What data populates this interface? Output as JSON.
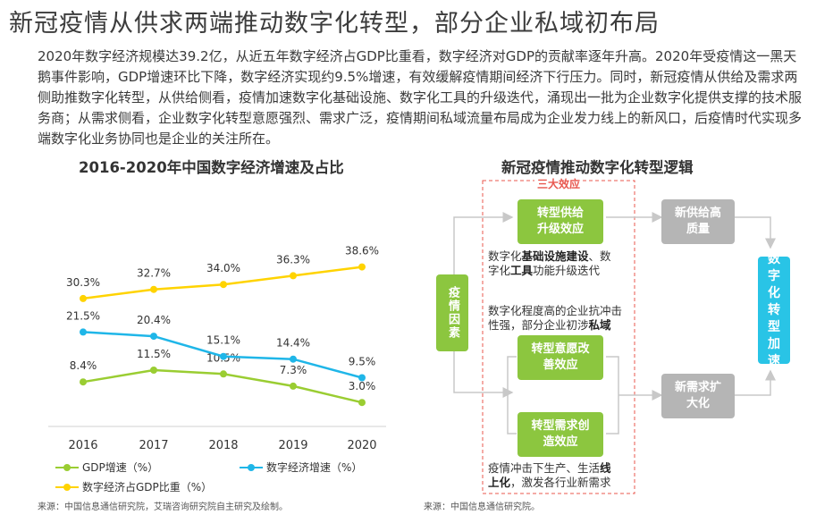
{
  "page_title": "新冠疫情从供求两端推动数字化转型，部分企业私域初布局",
  "intro": "2020年数字经济规模达39.2亿，从近五年数字经济占GDP比重看，数字经济对GDP的贡献率逐年升高。2020年受疫情这一黑天鹅事件影响，GDP增速环比下降，数字经济实现约9.5%增速，有效缓解疫情期间经济下行压力。同时，新冠疫情从供给及需求两侧助推数字化转型，从供给侧看，疫情加速数字化基础设施、数字化工具的升级迭代，涌现出一批为企业数字化提供支撑的技术服务商；从需求侧看，企业数字化转型意愿强烈、需求广泛，疫情期间私域流量布局成为企业发力线上的新风口，后疫情时代实现多端数字化业务协同也是企业的关注所在。",
  "chart_data": {
    "type": "line",
    "title": "2016-2020年中国数字经济增速及占比",
    "categories": [
      "2016",
      "2017",
      "2018",
      "2019",
      "2020"
    ],
    "series": [
      {
        "name": "GDP增速（%）",
        "values": [
          8.4,
          11.5,
          10.5,
          7.3,
          3.0
        ],
        "labels": [
          "8.4%",
          "11.5%",
          "10.5%",
          "7.3%",
          "3.0%"
        ],
        "color": "#9acd32"
      },
      {
        "name": "数字经济增速（%）",
        "values": [
          21.5,
          20.4,
          15.1,
          14.4,
          9.5
        ],
        "labels": [
          "21.5%",
          "20.4%",
          "15.1%",
          "14.4%",
          "9.5%"
        ],
        "color": "#1fb6e8"
      },
      {
        "name": "数字经济占GDP比重（%）",
        "values": [
          30.3,
          32.7,
          34.0,
          36.3,
          38.6
        ],
        "labels": [
          "30.3%",
          "32.7%",
          "34.0%",
          "36.3%",
          "38.6%"
        ],
        "color": "#ffd300"
      }
    ],
    "xlabel": "",
    "ylabel": "",
    "grid": false,
    "legend_position": "bottom"
  },
  "chart_source": "来源：中国信息通信研究院，艾瑞咨询研究院自主研究及绘制。",
  "logic": {
    "title": "新冠疫情推动数字化转型逻辑",
    "effects_label": "三大效应",
    "cause": "疫情因素",
    "box_supply": "转型供给升级效应",
    "box_willing": "转型意愿改善效应",
    "box_demand": "转型需求创造效应",
    "new_supply": "新供给高质量",
    "new_demand": "新需求扩大化",
    "result": "数字化转型加速",
    "desc1_a": "数字化",
    "desc1_b": "基础设施建设",
    "desc1_c": "、数",
    "desc1_d": "字化",
    "desc1_e": "工具",
    "desc1_f": "功能升级迭代",
    "desc2_a": "数字化程度高的企业抗冲击",
    "desc2_b": "性强，部分企业初涉",
    "desc2_c": "私域",
    "desc3_a": "疫情冲击下生产、生活",
    "desc3_b": "线",
    "desc3_c": "上化",
    "desc3_d": "，激发各行业新需求"
  },
  "logic_source": "来源：中国信息通信研究院。"
}
